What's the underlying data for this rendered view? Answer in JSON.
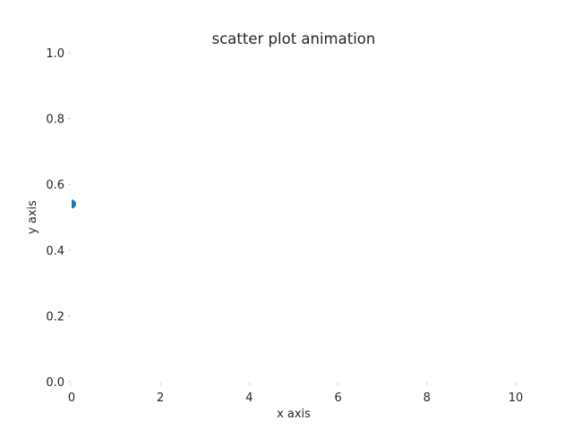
{
  "chart_data": {
    "type": "scatter",
    "title": "scatter plot animation",
    "xlabel": "x axis",
    "ylabel": "y axis",
    "xlim": [
      0,
      10
    ],
    "ylim": [
      0,
      1
    ],
    "xticks": [
      0,
      2,
      4,
      6,
      8,
      10
    ],
    "xtick_labels": [
      "0",
      "2",
      "4",
      "6",
      "8",
      "10"
    ],
    "yticks": [
      0.0,
      0.2,
      0.4,
      0.6,
      0.8,
      1.0
    ],
    "ytick_labels": [
      "0.0",
      "0.2",
      "0.4",
      "0.6",
      "0.8",
      "1.0"
    ],
    "grid": false,
    "series": [
      {
        "x": [
          0
        ],
        "y": [
          0.54
        ],
        "color": "#1f77b4"
      }
    ]
  }
}
